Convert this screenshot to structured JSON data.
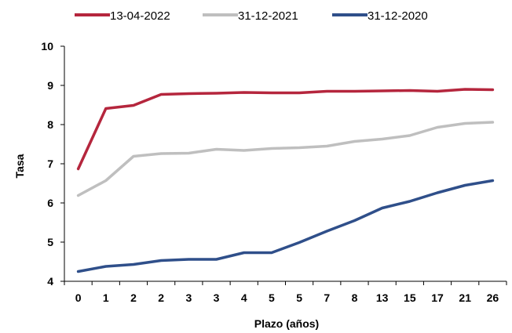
{
  "chart_data": {
    "type": "line",
    "title": "",
    "xlabel": "Plazo (años)",
    "ylabel": "Tasa",
    "ylim": [
      4,
      10
    ],
    "yticks": [
      4,
      5,
      6,
      7,
      8,
      9,
      10
    ],
    "grid": false,
    "legend_position": "top",
    "categories": [
      "0",
      "1",
      "2",
      "2",
      "3",
      "3",
      "4",
      "5",
      "5",
      "7",
      "8",
      "13",
      "15",
      "17",
      "21",
      "26"
    ],
    "series": [
      {
        "name": "13-04-2022",
        "color": "#b5263d",
        "values": [
          6.87,
          8.41,
          8.49,
          8.77,
          8.79,
          8.8,
          8.82,
          8.81,
          8.81,
          8.85,
          8.85,
          8.86,
          8.87,
          8.85,
          8.9,
          8.89
        ]
      },
      {
        "name": "31-12-2021",
        "color": "#bfbfbf",
        "values": [
          6.19,
          6.57,
          7.19,
          7.26,
          7.27,
          7.37,
          7.34,
          7.39,
          7.41,
          7.45,
          7.57,
          7.63,
          7.72,
          7.93,
          8.03,
          8.06
        ]
      },
      {
        "name": "31-12-2020",
        "color": "#2f4f8a",
        "values": [
          4.25,
          4.38,
          4.43,
          4.53,
          4.56,
          4.56,
          4.73,
          4.73,
          4.99,
          5.28,
          5.55,
          5.87,
          6.04,
          6.26,
          6.45,
          6.57
        ]
      }
    ]
  }
}
